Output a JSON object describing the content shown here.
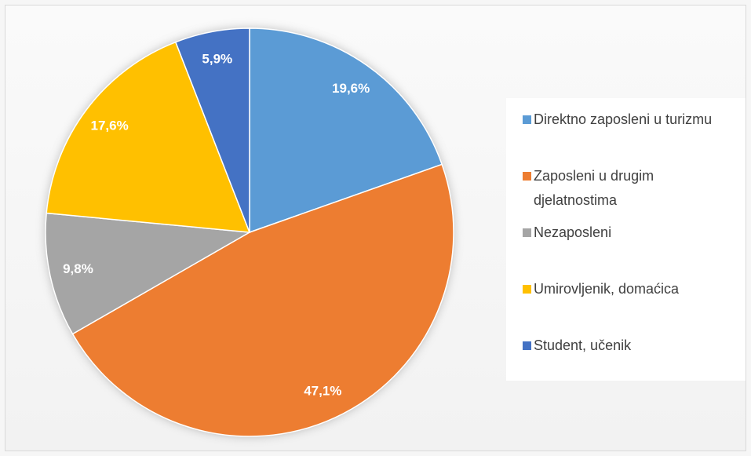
{
  "chart_data": {
    "type": "pie",
    "categories": [
      "Direktno zaposleni u turizmu",
      "Zaposleni u drugim djelatnostima",
      "Nezaposleni",
      "Umirovljenik, domaćica",
      "Student, učenik"
    ],
    "values": [
      19.6,
      47.1,
      9.8,
      17.6,
      5.9
    ],
    "value_labels": [
      "19,6%",
      "47,1%",
      "9,8%",
      "17,6%",
      "5,9%"
    ],
    "colors": [
      "#5b9bd5",
      "#ed7d31",
      "#a5a5a5",
      "#ffc000",
      "#4472c4"
    ],
    "legend": "right"
  }
}
